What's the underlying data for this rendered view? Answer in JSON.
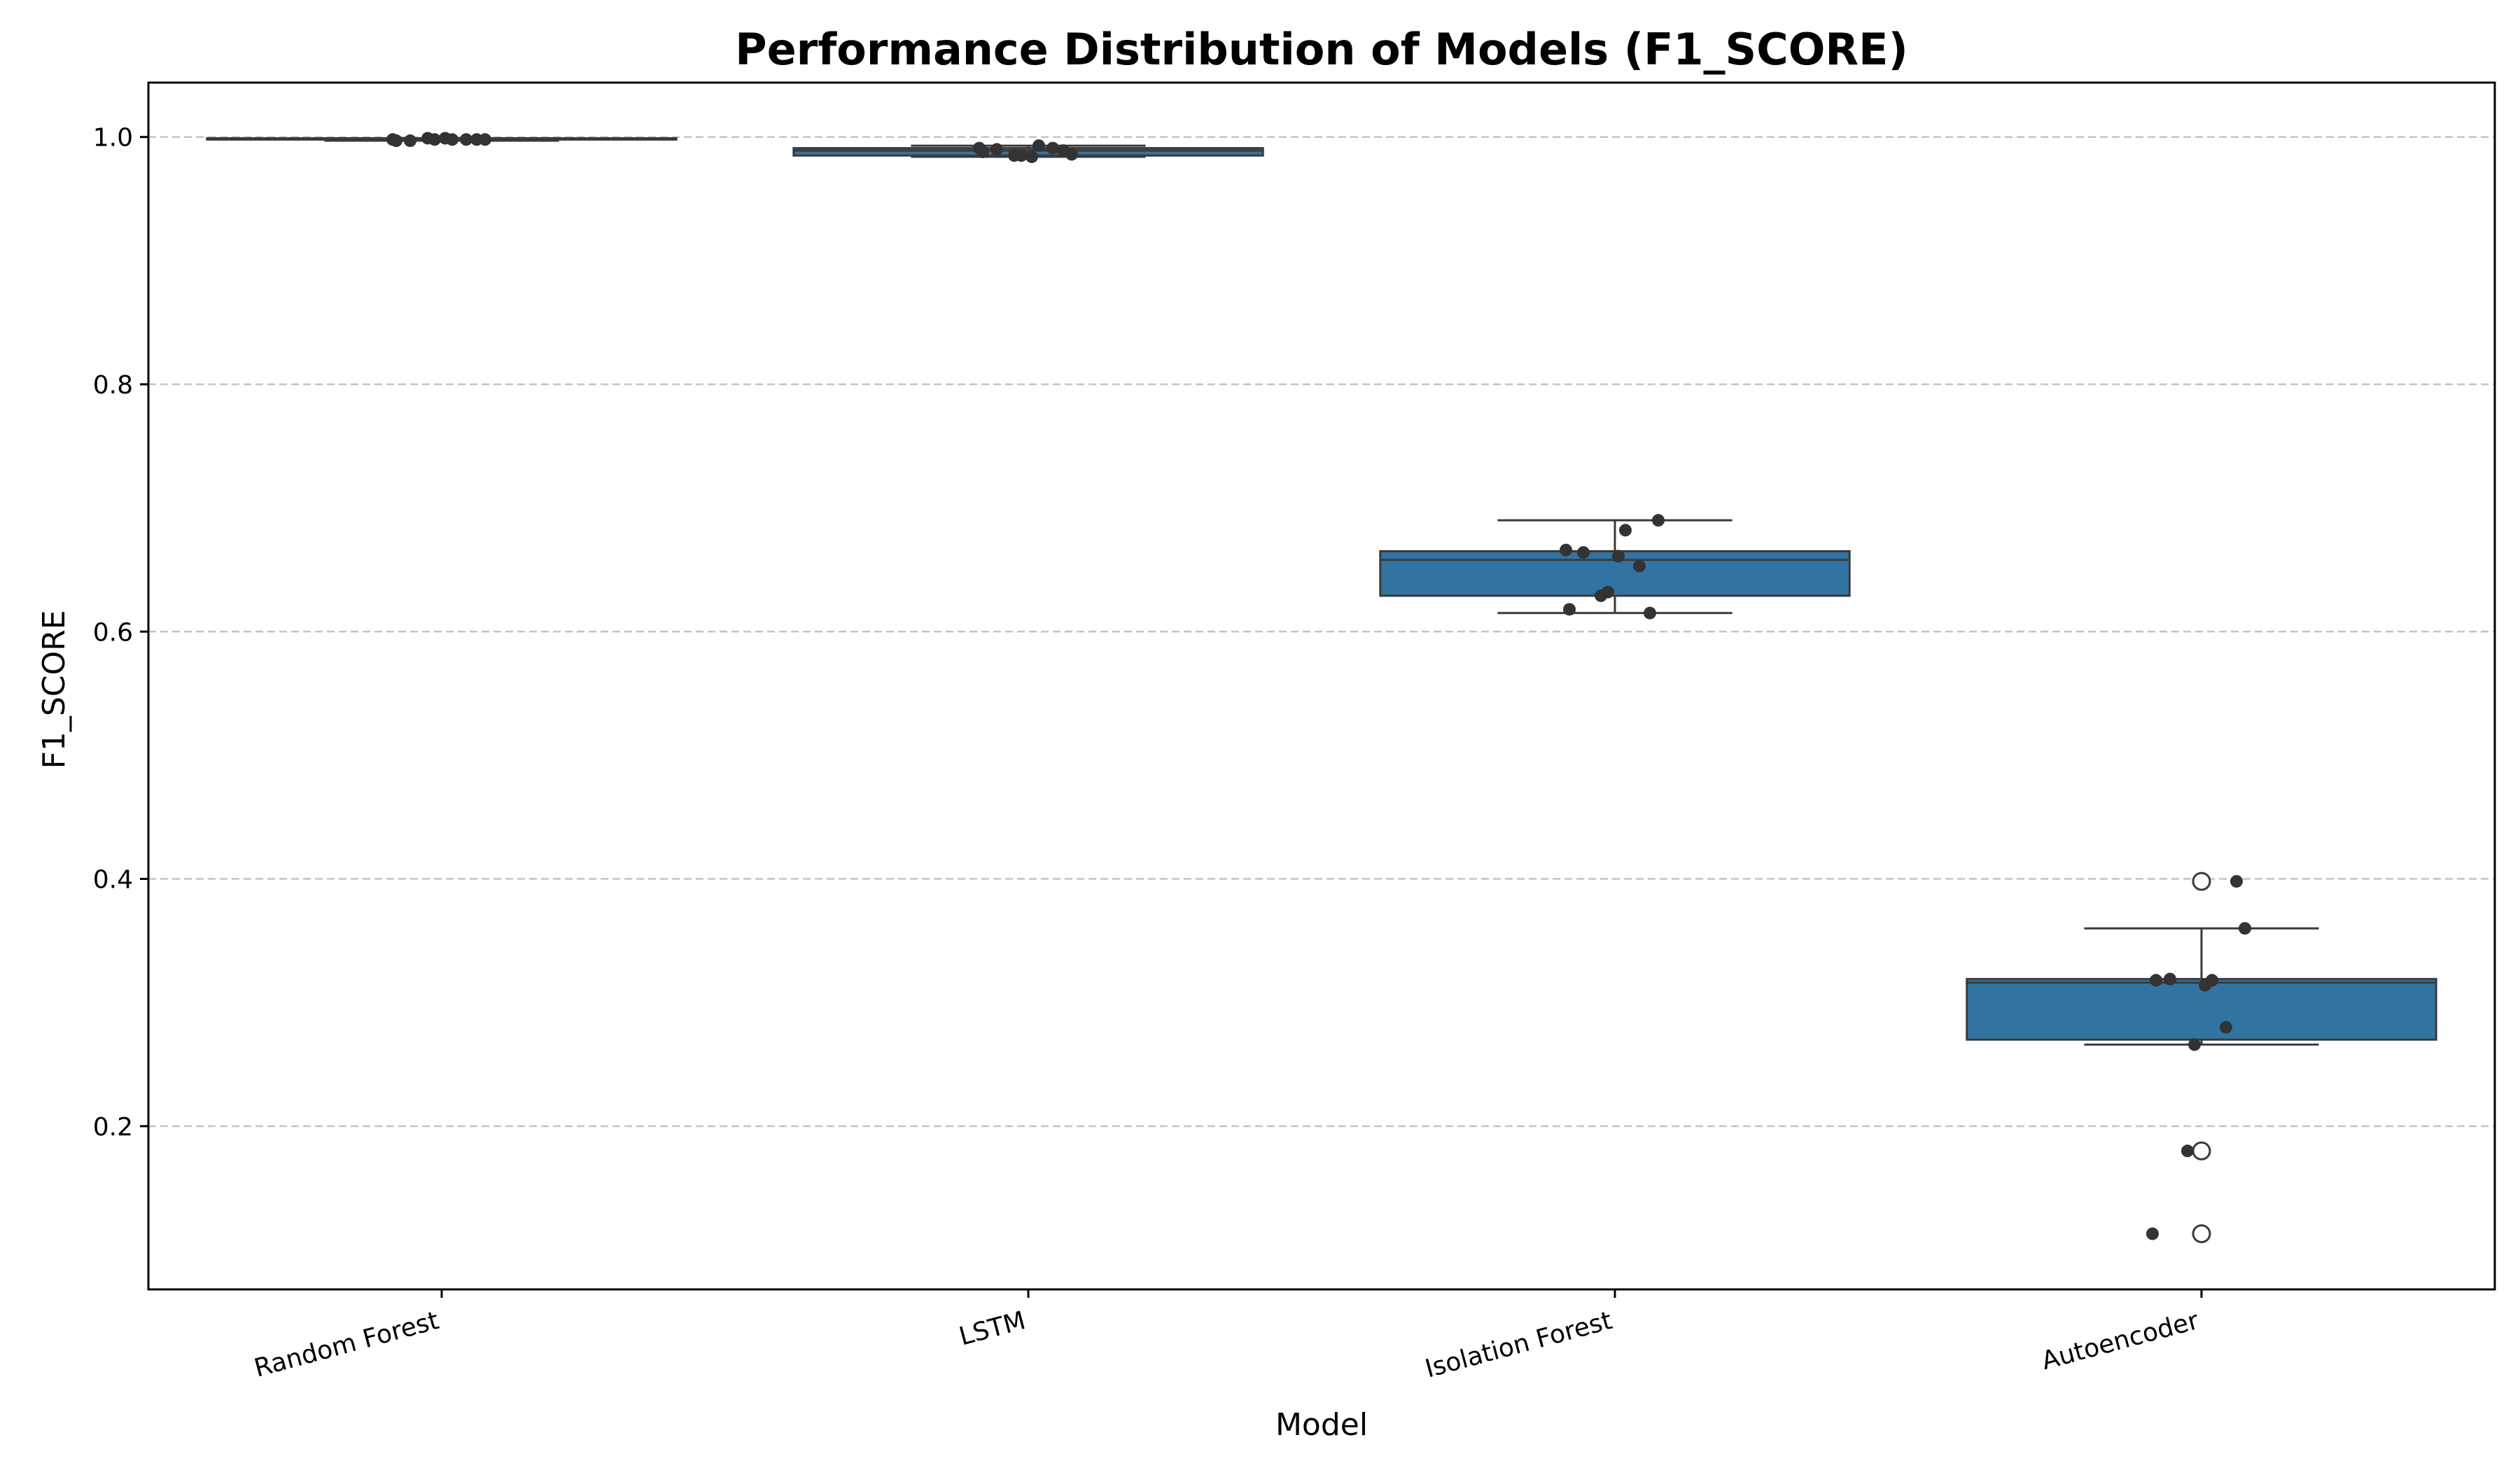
{
  "chart_data": {
    "type": "box",
    "title": "Performance Distribution of Models (F1_SCORE)",
    "xlabel": "Model",
    "ylabel": "F1_SCORE",
    "ylim": [
      0.068,
      1.044
    ],
    "yticks": [
      "0.2",
      "0.4",
      "0.6",
      "0.8",
      "1.0"
    ],
    "grid": "horizontal dashed",
    "box_color": "#3274a1",
    "point_color": "#333333",
    "categories": [
      "Random Forest",
      "LSTM",
      "Isolation Forest",
      "Autoencoder"
    ],
    "boxes": [
      {
        "name": "Random Forest",
        "whisker_low": 0.997,
        "q1": 0.998,
        "median": 0.998,
        "q3": 0.999,
        "whisker_high": 0.999,
        "outliers": []
      },
      {
        "name": "LSTM",
        "whisker_low": 0.984,
        "q1": 0.985,
        "median": 0.989,
        "q3": 0.991,
        "whisker_high": 0.993,
        "outliers": []
      },
      {
        "name": "Isolation Forest",
        "whisker_low": 0.615,
        "q1": 0.629,
        "median": 0.658,
        "q3": 0.665,
        "whisker_high": 0.69,
        "outliers": []
      },
      {
        "name": "Autoencoder",
        "whisker_low": 0.266,
        "q1": 0.27,
        "median": 0.316,
        "q3": 0.319,
        "whisker_high": 0.36,
        "outliers": [
          0.398,
          0.18,
          0.113
        ]
      }
    ],
    "points": [
      {
        "name": "Random Forest",
        "values": [
          0.998,
          0.998,
          0.999,
          0.998,
          0.997,
          0.998,
          0.999,
          0.998,
          0.998,
          0.997
        ]
      },
      {
        "name": "LSTM",
        "values": [
          0.991,
          0.993,
          0.985,
          0.989,
          0.99,
          0.986,
          0.984,
          0.991,
          0.985,
          0.988
        ]
      },
      {
        "name": "Isolation Forest",
        "values": [
          0.666,
          0.682,
          0.629,
          0.615,
          0.664,
          0.69,
          0.661,
          0.653,
          0.632,
          0.618
        ]
      },
      {
        "name": "Autoencoder",
        "values": [
          0.113,
          0.318,
          0.18,
          0.398,
          0.319,
          0.36,
          0.314,
          0.28,
          0.266,
          0.318
        ]
      }
    ]
  }
}
